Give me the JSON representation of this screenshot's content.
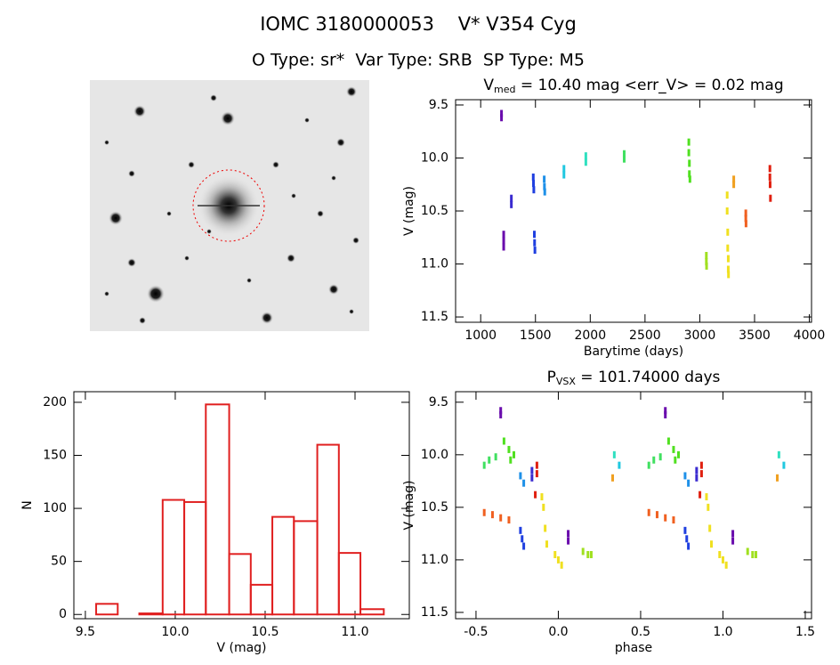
{
  "header": {
    "title": "IOMC 3180000053    V* V354 Cyg",
    "subtitle": "O Type: sr*  Var Type: SRB  SP Type: M5"
  },
  "chart_data": [
    {
      "type": "scatter",
      "title": {
        "main": "V",
        "sub": "med",
        "rest": " = 10.40 mag <err_V> = 0.02 mag"
      },
      "x_label": "Barytime (days)",
      "y_label": "V (mag)",
      "xlim": [
        771,
        4020
      ],
      "xticks": [
        1000,
        1500,
        2000,
        2500,
        3000,
        3500,
        4000
      ],
      "ylim": [
        9.45,
        11.55
      ],
      "y_inverted": true,
      "yticks": [
        9.5,
        {
          "value": 10.0,
          "label": "10.0"
        },
        10.5,
        {
          "value": 11.0,
          "label": "11.0"
        },
        11.5
      ],
      "series": [
        {
          "color": "#6a0dad",
          "x": [
            1190,
            1190,
            1210,
            1210,
            1210
          ],
          "values": [
            9.58,
            9.62,
            10.72,
            10.78,
            10.84
          ]
        },
        {
          "color": "#3a2bd0",
          "x": [
            1280,
            1280
          ],
          "values": [
            10.38,
            10.44
          ]
        },
        {
          "color": "#1f3fe0",
          "x": [
            1480,
            1482,
            1485,
            1490,
            1492,
            1495
          ],
          "values": [
            10.18,
            10.24,
            10.3,
            10.72,
            10.8,
            10.87
          ]
        },
        {
          "color": "#1e90e8",
          "x": [
            1580,
            1582,
            1585
          ],
          "values": [
            10.2,
            10.27,
            10.32
          ]
        },
        {
          "color": "#20c8e0",
          "x": [
            1760,
            1760
          ],
          "values": [
            10.1,
            10.16
          ]
        },
        {
          "color": "#30e0c0",
          "x": [
            1960,
            1960
          ],
          "values": [
            9.98,
            10.04
          ]
        },
        {
          "color": "#40e060",
          "x": [
            2310,
            2310
          ],
          "values": [
            9.96,
            10.01
          ]
        },
        {
          "color": "#50e020",
          "x": [
            2900,
            2900,
            2905,
            2905,
            2910
          ],
          "values": [
            9.85,
            9.95,
            10.05,
            10.15,
            10.2
          ]
        },
        {
          "color": "#a0e020",
          "x": [
            3060,
            3060,
            3062
          ],
          "values": [
            10.92,
            10.98,
            11.02
          ]
        },
        {
          "color": "#f0e020",
          "x": [
            3250,
            3250,
            3255,
            3255,
            3260,
            3260,
            3262
          ],
          "values": [
            10.35,
            10.5,
            10.7,
            10.85,
            10.95,
            11.05,
            11.1
          ]
        },
        {
          "color": "#f0a020",
          "x": [
            3310,
            3310
          ],
          "values": [
            10.2,
            10.25
          ]
        },
        {
          "color": "#f06020",
          "x": [
            3420,
            3420,
            3422
          ],
          "values": [
            10.52,
            10.57,
            10.62
          ]
        },
        {
          "color": "#e02010",
          "x": [
            3640,
            3640,
            3642,
            3645
          ],
          "values": [
            10.1,
            10.18,
            10.25,
            10.38
          ]
        }
      ]
    },
    {
      "type": "histogram",
      "x_label": "V (mag)",
      "y_label": "N",
      "color": "#e02020",
      "bins": [
        9.56,
        9.68,
        9.8,
        9.93,
        10.05,
        10.17,
        10.3,
        10.42,
        10.54,
        10.66,
        10.79,
        10.91,
        11.03,
        11.16
      ],
      "values": [
        10,
        0,
        1,
        108,
        106,
        198,
        57,
        28,
        92,
        88,
        160,
        58,
        5
      ],
      "xlim": [
        9.436,
        11.302
      ],
      "xticks": [
        9.5,
        {
          "value": 10.0,
          "label": "10.0"
        },
        10.5,
        {
          "value": 11.0,
          "label": "11.0"
        }
      ],
      "ylim": [
        -4,
        210
      ],
      "yticks": [
        0,
        50,
        100,
        150,
        200
      ]
    },
    {
      "type": "scatter",
      "title": {
        "main": "P",
        "sub": "VSX",
        "rest": " = 101.74000 days"
      },
      "x_label": "phase",
      "y_label": "V (mag)",
      "xlim": [
        -0.624,
        1.538
      ],
      "xticks": [
        -0.5,
        {
          "value": 0,
          "label": "0.0"
        },
        0.5,
        {
          "value": 1,
          "label": "1.0"
        },
        1.5
      ],
      "ylim": [
        9.4,
        11.56
      ],
      "y_inverted": true,
      "yticks": [
        9.5,
        {
          "value": 10.0,
          "label": "10.0"
        },
        10.5,
        {
          "value": 11.0,
          "label": "11.0"
        },
        11.5
      ],
      "series": [
        {
          "color": "#6a0dad",
          "x": [
            -0.35,
            -0.35,
            0.06,
            0.06,
            0.65,
            0.65,
            1.06,
            1.06
          ],
          "values": [
            9.58,
            9.62,
            10.75,
            10.82,
            9.58,
            9.62,
            10.75,
            10.82
          ]
        },
        {
          "color": "#3a2bd0",
          "x": [
            -0.16,
            -0.16,
            0.84,
            0.84
          ],
          "values": [
            10.15,
            10.22,
            10.15,
            10.22
          ]
        },
        {
          "color": "#1f3fe0",
          "x": [
            -0.23,
            -0.22,
            -0.21,
            0.77,
            0.78,
            0.79
          ],
          "values": [
            10.72,
            10.8,
            10.87,
            10.72,
            10.8,
            10.87
          ]
        },
        {
          "color": "#1e90e8",
          "x": [
            -0.23,
            -0.21,
            0.77,
            0.79
          ],
          "values": [
            10.2,
            10.27,
            10.2,
            10.27
          ]
        },
        {
          "color": "#20c8e0",
          "x": [
            0.37,
            1.37
          ],
          "values": [
            10.1,
            10.1
          ]
        },
        {
          "color": "#30e0c0",
          "x": [
            0.34,
            1.34
          ],
          "values": [
            10.0,
            10.0
          ]
        },
        {
          "color": "#40e060",
          "x": [
            -0.45,
            -0.42,
            -0.38,
            0.55,
            0.58,
            0.62
          ],
          "values": [
            10.1,
            10.05,
            10.02,
            10.1,
            10.05,
            10.02
          ]
        },
        {
          "color": "#50e020",
          "x": [
            -0.33,
            -0.3,
            -0.29,
            -0.27,
            0.67,
            0.7,
            0.71,
            0.73
          ],
          "values": [
            9.87,
            9.95,
            10.05,
            10.0,
            9.87,
            9.95,
            10.05,
            10.0
          ]
        },
        {
          "color": "#a0e020",
          "x": [
            0.15,
            0.18,
            0.2,
            1.15,
            1.18,
            1.2
          ],
          "values": [
            10.92,
            10.95,
            10.95,
            10.92,
            10.95,
            10.95
          ]
        },
        {
          "color": "#f0e020",
          "x": [
            -0.1,
            -0.09,
            -0.08,
            -0.07,
            -0.02,
            0.0,
            0.02,
            0.9,
            0.91,
            0.92,
            0.93,
            0.98,
            1.0,
            1.02
          ],
          "values": [
            10.4,
            10.5,
            10.7,
            10.85,
            10.95,
            11.0,
            11.05,
            10.4,
            10.5,
            10.7,
            10.85,
            10.95,
            11.0,
            11.05
          ]
        },
        {
          "color": "#f0a020",
          "x": [
            0.33,
            1.33
          ],
          "values": [
            10.22,
            10.22
          ]
        },
        {
          "color": "#f06020",
          "x": [
            -0.45,
            -0.4,
            -0.35,
            -0.3,
            0.55,
            0.6,
            0.65,
            0.7
          ],
          "values": [
            10.55,
            10.57,
            10.6,
            10.62,
            10.55,
            10.57,
            10.6,
            10.62
          ]
        },
        {
          "color": "#e02010",
          "x": [
            -0.13,
            -0.13,
            -0.14,
            0.87,
            0.87,
            0.86
          ],
          "values": [
            10.1,
            10.18,
            10.38,
            10.1,
            10.18,
            10.38
          ]
        }
      ]
    }
  ]
}
